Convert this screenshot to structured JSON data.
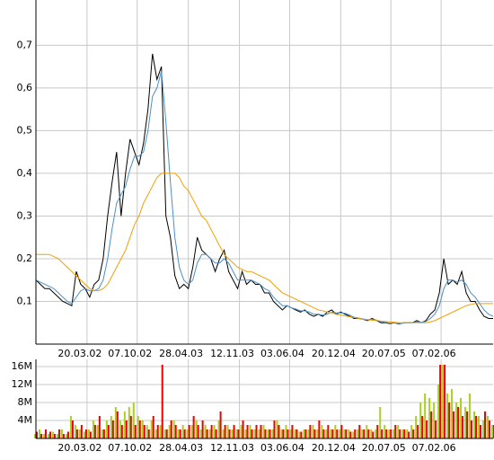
{
  "chart_data": [
    {
      "type": "line",
      "x": [
        0,
        1,
        2,
        3,
        4,
        5,
        6,
        7,
        8,
        9,
        10,
        11,
        12,
        13,
        14,
        15,
        16,
        17,
        18,
        19,
        20,
        21,
        22,
        23,
        24,
        25,
        26,
        27,
        28,
        29,
        30,
        31,
        32,
        33,
        34,
        35,
        36,
        37,
        38,
        39,
        40,
        41,
        42,
        43,
        44,
        45,
        46,
        47,
        48,
        49,
        50,
        51,
        52,
        53,
        54,
        55,
        56,
        57,
        58,
        59,
        60,
        61,
        62,
        63,
        64,
        65,
        66,
        67,
        68,
        69,
        70,
        71,
        72,
        73,
        74,
        75,
        76,
        77,
        78,
        79,
        80,
        81,
        82,
        83,
        84,
        85,
        86,
        87,
        88,
        89,
        90,
        91,
        92,
        93,
        94,
        95,
        96,
        97,
        98,
        99,
        100,
        101,
        102
      ],
      "xlim": [
        0,
        102
      ],
      "xticks": [
        {
          "value": 11.4,
          "label": "20.03.02"
        },
        {
          "value": 22.6,
          "label": "07.10.02"
        },
        {
          "value": 34,
          "label": "28.04.03"
        },
        {
          "value": 45.4,
          "label": "12.11.03"
        },
        {
          "value": 56.6,
          "label": "03.06.04"
        },
        {
          "value": 68,
          "label": "20.12.04"
        },
        {
          "value": 79.2,
          "label": "20.07.05"
        },
        {
          "value": 90.4,
          "label": "07.02.06"
        }
      ],
      "ylim": [
        0,
        0.806
      ],
      "yticks": [
        {
          "value": 0.1,
          "label": "0,1"
        },
        {
          "value": 0.2,
          "label": "0,2"
        },
        {
          "value": 0.3,
          "label": "0,3"
        },
        {
          "value": 0.4,
          "label": "0,4"
        },
        {
          "value": 0.5,
          "label": "0,5"
        },
        {
          "value": 0.6,
          "label": "0,6"
        },
        {
          "value": 0.7,
          "label": "0,7"
        }
      ],
      "grid": true,
      "series": [
        {
          "color": "#000000",
          "values": [
            0.15,
            0.14,
            0.13,
            0.13,
            0.12,
            0.11,
            0.1,
            0.095,
            0.09,
            0.17,
            0.14,
            0.13,
            0.11,
            0.14,
            0.15,
            0.2,
            0.3,
            0.38,
            0.45,
            0.3,
            0.4,
            0.48,
            0.45,
            0.42,
            0.47,
            0.55,
            0.68,
            0.62,
            0.65,
            0.3,
            0.25,
            0.16,
            0.13,
            0.14,
            0.13,
            0.18,
            0.25,
            0.22,
            0.21,
            0.2,
            0.17,
            0.2,
            0.22,
            0.17,
            0.15,
            0.13,
            0.17,
            0.14,
            0.15,
            0.14,
            0.14,
            0.12,
            0.12,
            0.1,
            0.09,
            0.08,
            0.09,
            0.085,
            0.08,
            0.075,
            0.08,
            0.07,
            0.065,
            0.07,
            0.065,
            0.075,
            0.08,
            0.07,
            0.075,
            0.07,
            0.065,
            0.06,
            0.06,
            0.058,
            0.055,
            0.06,
            0.055,
            0.05,
            0.05,
            0.048,
            0.05,
            0.047,
            0.05,
            0.05,
            0.05,
            0.055,
            0.05,
            0.055,
            0.07,
            0.08,
            0.12,
            0.2,
            0.14,
            0.15,
            0.14,
            0.17,
            0.12,
            0.1,
            0.1,
            0.08,
            0.065,
            0.06,
            0.06
          ]
        },
        {
          "color": "#4a90c8",
          "values": [
            0.15,
            0.145,
            0.14,
            0.135,
            0.13,
            0.12,
            0.11,
            0.1,
            0.095,
            0.11,
            0.125,
            0.13,
            0.125,
            0.125,
            0.13,
            0.15,
            0.2,
            0.27,
            0.33,
            0.35,
            0.37,
            0.41,
            0.44,
            0.44,
            0.45,
            0.5,
            0.58,
            0.6,
            0.64,
            0.52,
            0.38,
            0.25,
            0.18,
            0.15,
            0.14,
            0.15,
            0.19,
            0.21,
            0.21,
            0.2,
            0.19,
            0.19,
            0.2,
            0.19,
            0.17,
            0.15,
            0.15,
            0.15,
            0.15,
            0.145,
            0.14,
            0.13,
            0.125,
            0.11,
            0.1,
            0.09,
            0.09,
            0.085,
            0.082,
            0.078,
            0.078,
            0.075,
            0.07,
            0.07,
            0.068,
            0.07,
            0.075,
            0.073,
            0.073,
            0.072,
            0.068,
            0.063,
            0.061,
            0.059,
            0.057,
            0.058,
            0.056,
            0.053,
            0.051,
            0.049,
            0.05,
            0.048,
            0.049,
            0.05,
            0.05,
            0.052,
            0.051,
            0.053,
            0.06,
            0.07,
            0.09,
            0.13,
            0.15,
            0.15,
            0.145,
            0.15,
            0.14,
            0.12,
            0.11,
            0.095,
            0.08,
            0.07,
            0.065
          ]
        },
        {
          "color": "#f0a000",
          "values": [
            0.21,
            0.21,
            0.21,
            0.21,
            0.205,
            0.2,
            0.19,
            0.18,
            0.17,
            0.16,
            0.15,
            0.14,
            0.13,
            0.125,
            0.125,
            0.13,
            0.14,
            0.16,
            0.18,
            0.2,
            0.22,
            0.25,
            0.28,
            0.3,
            0.33,
            0.35,
            0.37,
            0.39,
            0.4,
            0.4,
            0.4,
            0.4,
            0.39,
            0.37,
            0.36,
            0.34,
            0.32,
            0.3,
            0.29,
            0.27,
            0.25,
            0.23,
            0.21,
            0.2,
            0.19,
            0.18,
            0.175,
            0.17,
            0.17,
            0.165,
            0.16,
            0.155,
            0.15,
            0.14,
            0.13,
            0.12,
            0.115,
            0.11,
            0.105,
            0.1,
            0.095,
            0.09,
            0.085,
            0.08,
            0.078,
            0.075,
            0.073,
            0.07,
            0.068,
            0.066,
            0.064,
            0.062,
            0.06,
            0.058,
            0.057,
            0.056,
            0.055,
            0.054,
            0.053,
            0.052,
            0.051,
            0.05,
            0.05,
            0.05,
            0.05,
            0.05,
            0.05,
            0.05,
            0.052,
            0.055,
            0.06,
            0.065,
            0.07,
            0.075,
            0.08,
            0.085,
            0.09,
            0.093,
            0.095,
            0.095,
            0.095,
            0.095,
            0.095
          ]
        }
      ]
    },
    {
      "type": "bar",
      "x": [
        0,
        1,
        2,
        3,
        4,
        5,
        6,
        7,
        8,
        9,
        10,
        11,
        12,
        13,
        14,
        15,
        16,
        17,
        18,
        19,
        20,
        21,
        22,
        23,
        24,
        25,
        26,
        27,
        28,
        29,
        30,
        31,
        32,
        33,
        34,
        35,
        36,
        37,
        38,
        39,
        40,
        41,
        42,
        43,
        44,
        45,
        46,
        47,
        48,
        49,
        50,
        51,
        52,
        53,
        54,
        55,
        56,
        57,
        58,
        59,
        60,
        61,
        62,
        63,
        64,
        65,
        66,
        67,
        68,
        69,
        70,
        71,
        72,
        73,
        74,
        75,
        76,
        77,
        78,
        79,
        80,
        81,
        82,
        83,
        84,
        85,
        86,
        87,
        88,
        89,
        90,
        91,
        92,
        93,
        94,
        95,
        96,
        97,
        98,
        99,
        100,
        101,
        102
      ],
      "xlim": [
        0,
        102
      ],
      "xticks": [
        {
          "value": 11.4,
          "label": "20.03.02"
        },
        {
          "value": 22.6,
          "label": "07.10.02"
        },
        {
          "value": 34,
          "label": "28.04.03"
        },
        {
          "value": 45.4,
          "label": "12.11.03"
        },
        {
          "value": 56.6,
          "label": "03.06.04"
        },
        {
          "value": 68,
          "label": "20.12.04"
        },
        {
          "value": 79.2,
          "label": "20.07.05"
        },
        {
          "value": 90.4,
          "label": "07.02.06"
        }
      ],
      "ylim": [
        0,
        17.6
      ],
      "yticks": [
        {
          "value": 4,
          "label": "4M"
        },
        {
          "value": 8,
          "label": "8M"
        },
        {
          "value": 12,
          "label": "12M"
        },
        {
          "value": 16,
          "label": "16M"
        }
      ],
      "grid": true,
      "series": [
        {
          "color": "#a8d020",
          "values": [
            1,
            2,
            1,
            1,
            1.5,
            1,
            2,
            1,
            5,
            3,
            2,
            1.5,
            2,
            4,
            3,
            2,
            4,
            5,
            7,
            4,
            6,
            7,
            8,
            5,
            4,
            3,
            4,
            2,
            3,
            2,
            3,
            4,
            2,
            3,
            2,
            3,
            4,
            2,
            3,
            2,
            3,
            4,
            2,
            3,
            2,
            2,
            3,
            2,
            3,
            2,
            2,
            3,
            2,
            2,
            4,
            2,
            3,
            2,
            2,
            1.5,
            2,
            2,
            3,
            2,
            3,
            2,
            2,
            3,
            2,
            2,
            2,
            1.5,
            2,
            2,
            3,
            2,
            2,
            7,
            3,
            2,
            2,
            3,
            2,
            2,
            3,
            5,
            8,
            10,
            9,
            8,
            12,
            16.4,
            10,
            11,
            8,
            9,
            7,
            10,
            6,
            5,
            4,
            5,
            3
          ]
        },
        {
          "color": "#ee0000",
          "values": [
            1.5,
            1,
            2,
            1.5,
            1,
            2,
            1,
            1.5,
            4,
            2,
            3,
            2,
            1.5,
            3,
            5,
            2,
            3,
            4,
            6,
            3,
            4,
            5,
            3,
            4,
            3,
            2,
            5,
            3,
            16.4,
            2,
            4,
            3,
            2,
            2,
            3,
            5,
            3,
            4,
            2,
            3,
            2,
            6,
            3,
            2,
            3,
            2,
            4,
            3,
            2,
            3,
            3,
            2,
            2,
            4,
            3,
            2,
            2,
            3,
            2,
            1.5,
            2,
            3,
            2,
            4,
            2,
            3,
            2,
            2,
            3,
            2,
            1.5,
            2,
            3,
            2,
            2,
            1.5,
            3,
            2,
            2,
            2,
            3,
            2,
            2,
            1.5,
            2,
            3,
            5,
            4,
            6,
            4,
            16.4,
            16.4,
            8,
            6,
            7,
            5,
            6,
            4,
            5,
            3,
            6,
            4,
            3
          ]
        }
      ]
    }
  ]
}
